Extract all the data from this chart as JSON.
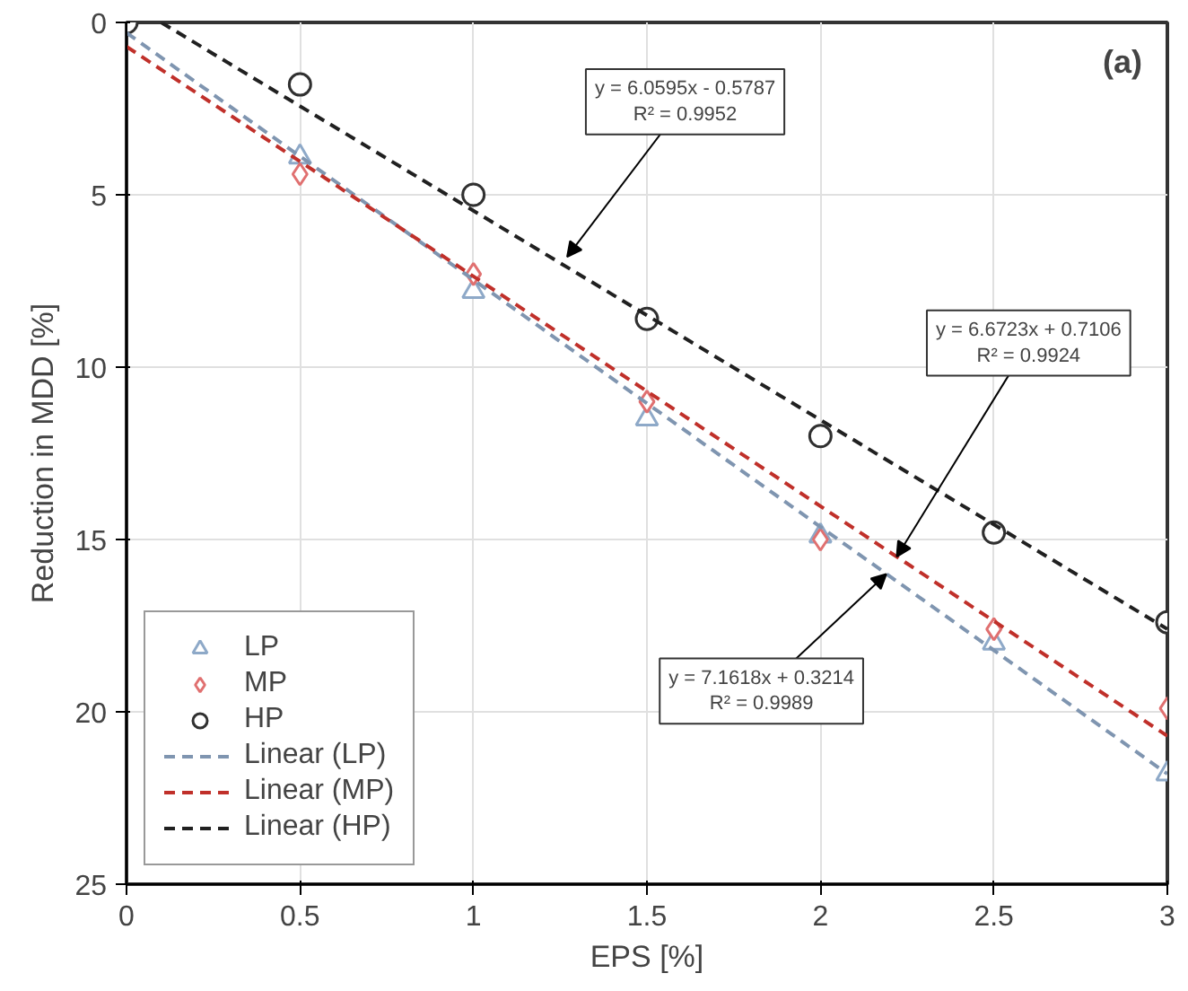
{
  "chart_data": {
    "type": "scatter",
    "xlabel": "EPS [%]",
    "ylabel": "Reduction in MDD [%]",
    "x": [
      0,
      0.5,
      1,
      1.5,
      2,
      2.5,
      3
    ],
    "xlim": [
      0,
      3
    ],
    "xticks": [
      0,
      0.5,
      1,
      1.5,
      2,
      2.5,
      3
    ],
    "ylim": [
      25,
      0
    ],
    "yticks": [
      0,
      5,
      10,
      15,
      20,
      25
    ],
    "grid": true,
    "legend": "bottom left",
    "series": [
      {
        "name": "LP",
        "marker": "triangle",
        "color": "#8ea9c8",
        "values": [
          null,
          3.9,
          7.8,
          11.5,
          14.9,
          18.0,
          21.8
        ]
      },
      {
        "name": "MP",
        "marker": "diamond",
        "color": "#e07070",
        "values": [
          null,
          4.4,
          7.3,
          11.0,
          15.0,
          17.6,
          19.9
        ]
      },
      {
        "name": "HP",
        "marker": "circle",
        "color": "#303030",
        "values": [
          0,
          1.8,
          5.0,
          8.6,
          12.0,
          14.8,
          17.4
        ]
      },
      {
        "name": "Linear (LP)",
        "type": "line",
        "line_style": "dashed",
        "color": "#7f95b0",
        "x": [
          0,
          3
        ],
        "values": [
          0.3,
          21.8
        ]
      },
      {
        "name": "Linear (MP)",
        "type": "line",
        "line_style": "dashed",
        "color": "#c0302a",
        "x": [
          0,
          3
        ],
        "values": [
          0.7,
          20.7
        ]
      },
      {
        "name": "Linear (HP)",
        "type": "line",
        "line_style": "dashed",
        "color": "#202020",
        "x": [
          0.1,
          3
        ],
        "values": [
          0,
          17.6
        ]
      }
    ],
    "annotations": [
      {
        "text": "y = 6.0595x - 0.5787\nR² = 0.9952",
        "x": 1.27,
        "y": 6.8
      },
      {
        "text": "y = 6.6723x + 0.7106\nR² = 0.9924",
        "x": 2.22,
        "y": 15.5
      },
      {
        "text": "y = 7.1618x + 0.3214\nR² = 0.9989",
        "x": 2.19,
        "y": 16.0
      },
      "(a)"
    ]
  }
}
